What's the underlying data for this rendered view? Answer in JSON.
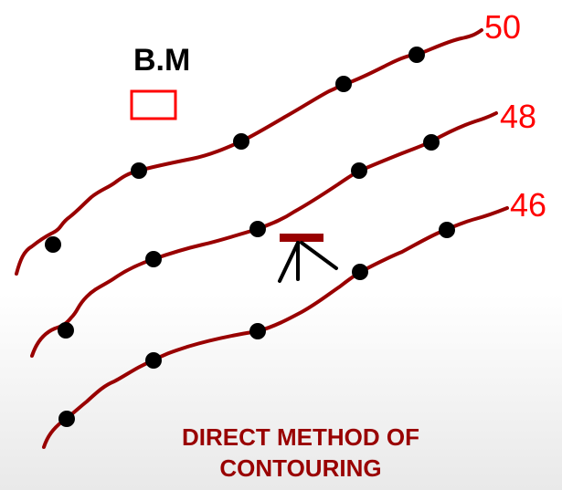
{
  "diagram": {
    "benchmark_label": "B.M",
    "contour_labels": [
      "50",
      "48",
      "46"
    ],
    "caption_line1": "DIRECT METHOD OF",
    "caption_line2": "CONTOURING",
    "colors": {
      "contour": "#990000",
      "label": "#ff0000",
      "caption": "#990000",
      "benchmark_box": "#ff0000",
      "instrument_head": "#990000",
      "station_dot": "#000000"
    },
    "icons": [
      "level-instrument-icon",
      "benchmark-box-icon"
    ]
  }
}
